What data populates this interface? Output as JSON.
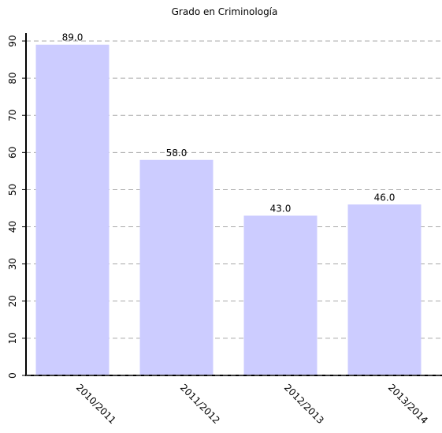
{
  "chart_data": {
    "type": "bar",
    "title": "",
    "subtitle": "Grado en Criminología",
    "categories": [
      "2010/2011",
      "2011/2012",
      "2012/2013",
      "2013/2014"
    ],
    "values": [
      89.0,
      58.0,
      43.0,
      46.0
    ],
    "value_labels": [
      "89.0",
      "58.0",
      "43.0",
      "46.0"
    ],
    "ylim": [
      0,
      90
    ],
    "yticks": [
      0,
      10,
      20,
      30,
      40,
      50,
      60,
      70,
      80,
      90
    ],
    "xlabel": "",
    "ylabel": "",
    "grid": true,
    "bar_color": "#ccccff",
    "grid_color": "#aaaaaa"
  }
}
